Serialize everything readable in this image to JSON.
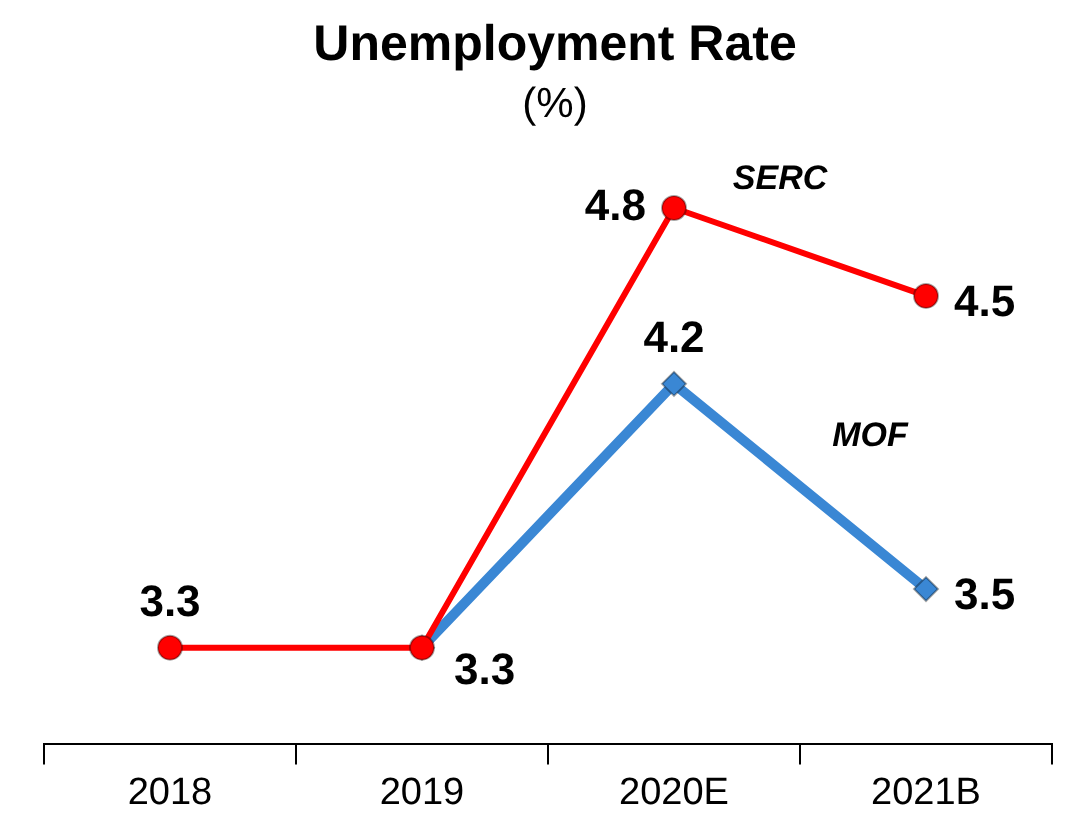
{
  "chart_data": {
    "type": "line",
    "title": "Unemployment Rate",
    "subtitle": "(%)",
    "categories": [
      "2018",
      "2019",
      "2020E",
      "2021B"
    ],
    "series": [
      {
        "name": "SERC",
        "color": "#ff0000",
        "marker": "circle",
        "values": [
          3.3,
          3.3,
          4.8,
          4.5
        ],
        "value_labels": [
          "3.3",
          "3.3",
          "4.8",
          "4.5"
        ]
      },
      {
        "name": "MOF",
        "color": "#3a87d4",
        "marker": "diamond",
        "values": [
          null,
          3.3,
          4.2,
          3.5
        ],
        "value_labels": [
          null,
          null,
          "4.2",
          "3.5"
        ]
      }
    ],
    "grid": false,
    "legend": false
  }
}
